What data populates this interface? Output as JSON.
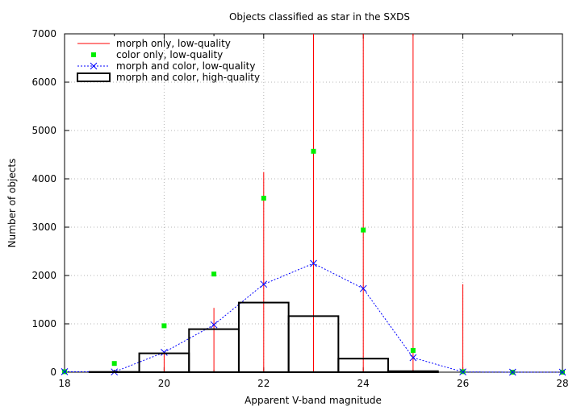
{
  "chart_data": {
    "type": "bar",
    "title": "Objects classified as star in the SXDS",
    "xlabel": "Apparent V-band magnitude",
    "ylabel": "Number of objects",
    "xlim": [
      18,
      28
    ],
    "ylim": [
      0,
      7000
    ],
    "xticks": [
      18,
      20,
      22,
      24,
      26,
      28
    ],
    "yticks": [
      0,
      1000,
      2000,
      3000,
      4000,
      5000,
      6000,
      7000
    ],
    "grid": true,
    "legend_position": "top-left",
    "series": [
      {
        "name": "morph only, low-quality",
        "style": "impulses",
        "color": "#ff0000",
        "x": [
          18,
          19,
          20,
          21,
          22,
          23,
          24,
          25,
          26,
          27,
          28
        ],
        "values": [
          0,
          0,
          400,
          1330,
          4140,
          7000,
          7000,
          7000,
          1820,
          0,
          0
        ]
      },
      {
        "name": "color only, low-quality",
        "style": "points",
        "marker": "square",
        "color": "#00ee00",
        "x": [
          18,
          19,
          20,
          21,
          22,
          23,
          24,
          25,
          26,
          27,
          28
        ],
        "values": [
          10,
          180,
          960,
          2030,
          3600,
          4570,
          2940,
          450,
          10,
          0,
          0
        ]
      },
      {
        "name": "morph and color, low-quality",
        "style": "linespoints",
        "marker": "x",
        "color": "#0000ff",
        "x": [
          18,
          19,
          20,
          21,
          22,
          23,
          24,
          25,
          26,
          27,
          28
        ],
        "values": [
          10,
          5,
          410,
          980,
          1820,
          2250,
          1730,
          300,
          5,
          0,
          0
        ]
      },
      {
        "name": "morph and color, high-quality",
        "style": "histogram",
        "color": "#000000",
        "bin_width": 1,
        "x": [
          19,
          20,
          21,
          22,
          23,
          24,
          25
        ],
        "values": [
          5,
          390,
          890,
          1440,
          1160,
          280,
          20
        ]
      }
    ]
  }
}
